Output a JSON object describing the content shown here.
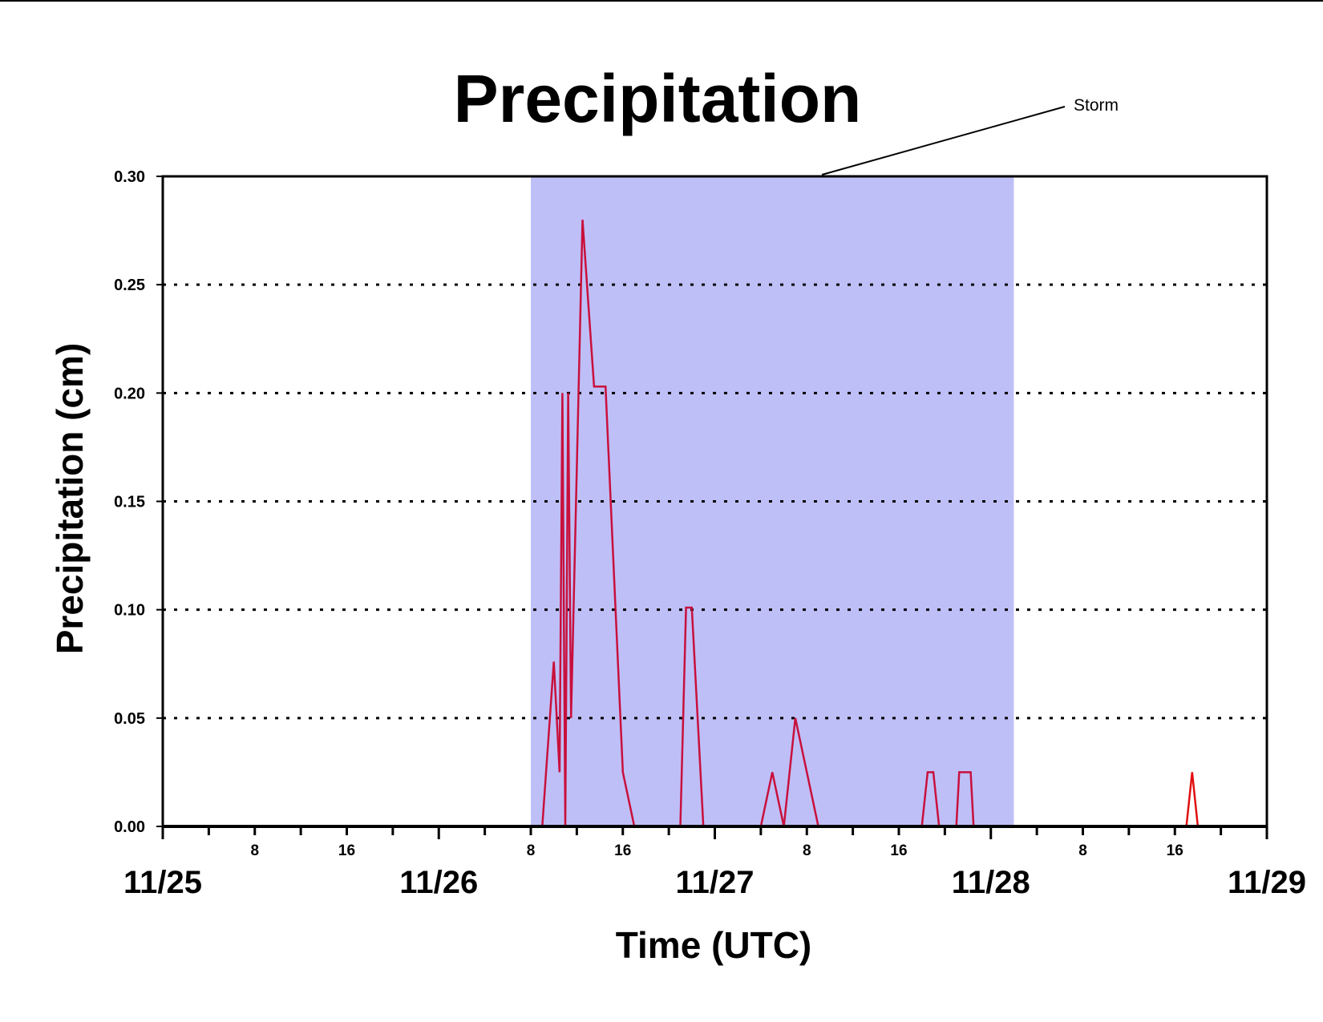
{
  "chart_data": {
    "type": "line",
    "title": "Precipitation",
    "xlabel": "Time (UTC)",
    "ylabel": "Precipitation (cm)",
    "ylim": [
      0,
      0.3
    ],
    "yticks": [
      "0.00",
      "0.05",
      "0.10",
      "0.15",
      "0.20",
      "0.25",
      "0.30"
    ],
    "xlim": [
      "11/25 00",
      "11/29 00"
    ],
    "date_labels": [
      "11/25",
      "11/26",
      "11/27",
      "11/28",
      "11/29"
    ],
    "hour_labels": [
      "8",
      "16"
    ],
    "grid": "horizontal dotted",
    "shaded_region": {
      "label": "Storm",
      "start": "11/26 08:00",
      "end": "11/28 02:00",
      "color": "#bfbff8"
    },
    "series": [
      {
        "color": "#c8103c",
        "x": [
          "11/25 00:00",
          "11/26 09:00",
          "11/26 10:00",
          "11/26 10:30",
          "11/26 10:45",
          "11/26 11:00",
          "11/26 11:15",
          "11/26 11:30",
          "11/26 12:30",
          "11/26 13:30",
          "11/26 14:30",
          "11/26 16:00",
          "11/26 17:00",
          "11/26 21:00",
          "11/26 21:30",
          "11/26 22:00",
          "11/26 23:00",
          "11/27 04:00",
          "11/27 05:00",
          "11/27 06:00",
          "11/27 07:00",
          "11/27 09:00",
          "11/27 18:00",
          "11/27 18:30",
          "11/27 19:00",
          "11/27 19:30",
          "11/27 21:00",
          "11/27 21:15",
          "11/27 22:15",
          "11/27 22:30",
          "11/29 00:00"
        ],
        "values": [
          0,
          0,
          0.076,
          0.025,
          0.2,
          0,
          0.2,
          0.05,
          0.28,
          0.203,
          0.203,
          0.025,
          0,
          0,
          0.101,
          0.101,
          0,
          0,
          0.025,
          0,
          0.05,
          0,
          0,
          0.025,
          0.025,
          0,
          0,
          0.025,
          0.025,
          0,
          0
        ]
      },
      {
        "color": "#e01010",
        "x": [
          "11/28 17:00",
          "11/28 17:30",
          "11/28 18:00"
        ],
        "values": [
          0,
          0.025,
          0
        ]
      }
    ],
    "annotations": [
      {
        "text": "Storm"
      }
    ]
  }
}
